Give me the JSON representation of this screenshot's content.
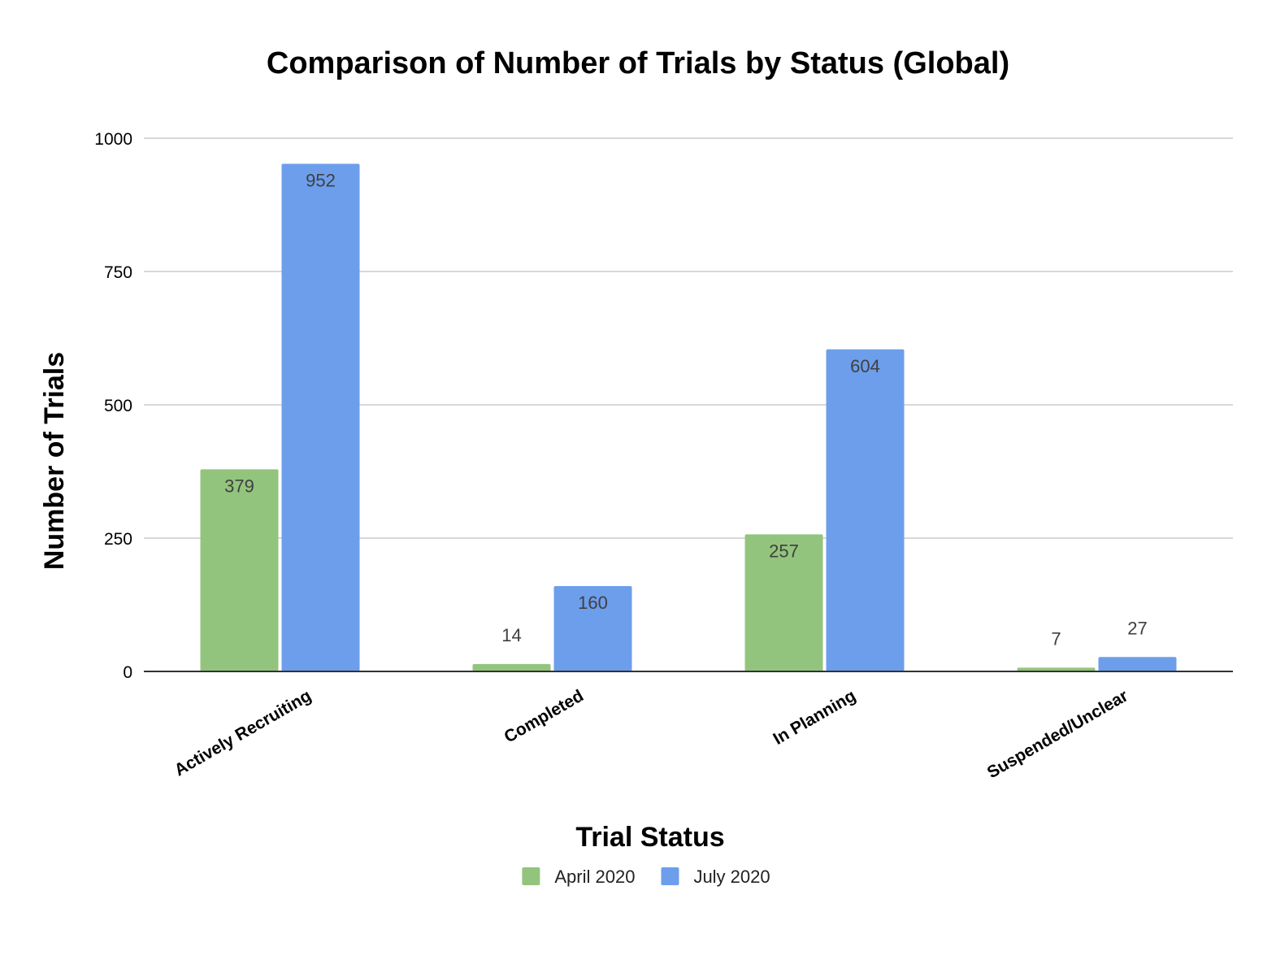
{
  "chart_data": {
    "type": "bar",
    "title": "Comparison of Number of Trials by Status (Global)",
    "xlabel": "Trial Status",
    "ylabel": "Number of Trials",
    "categories": [
      "Actively Recruiting",
      "Completed",
      "In Planning",
      "Suspended/Unclear"
    ],
    "series": [
      {
        "name": "April 2020",
        "color": "#93c47d",
        "values": [
          379,
          14,
          257,
          7
        ]
      },
      {
        "name": "July 2020",
        "color": "#6d9eeb",
        "values": [
          952,
          160,
          604,
          27
        ]
      }
    ],
    "ylim": [
      0,
      1000
    ],
    "yticks": [
      0,
      250,
      500,
      750,
      1000
    ],
    "grid": true,
    "legend": "bottom"
  }
}
